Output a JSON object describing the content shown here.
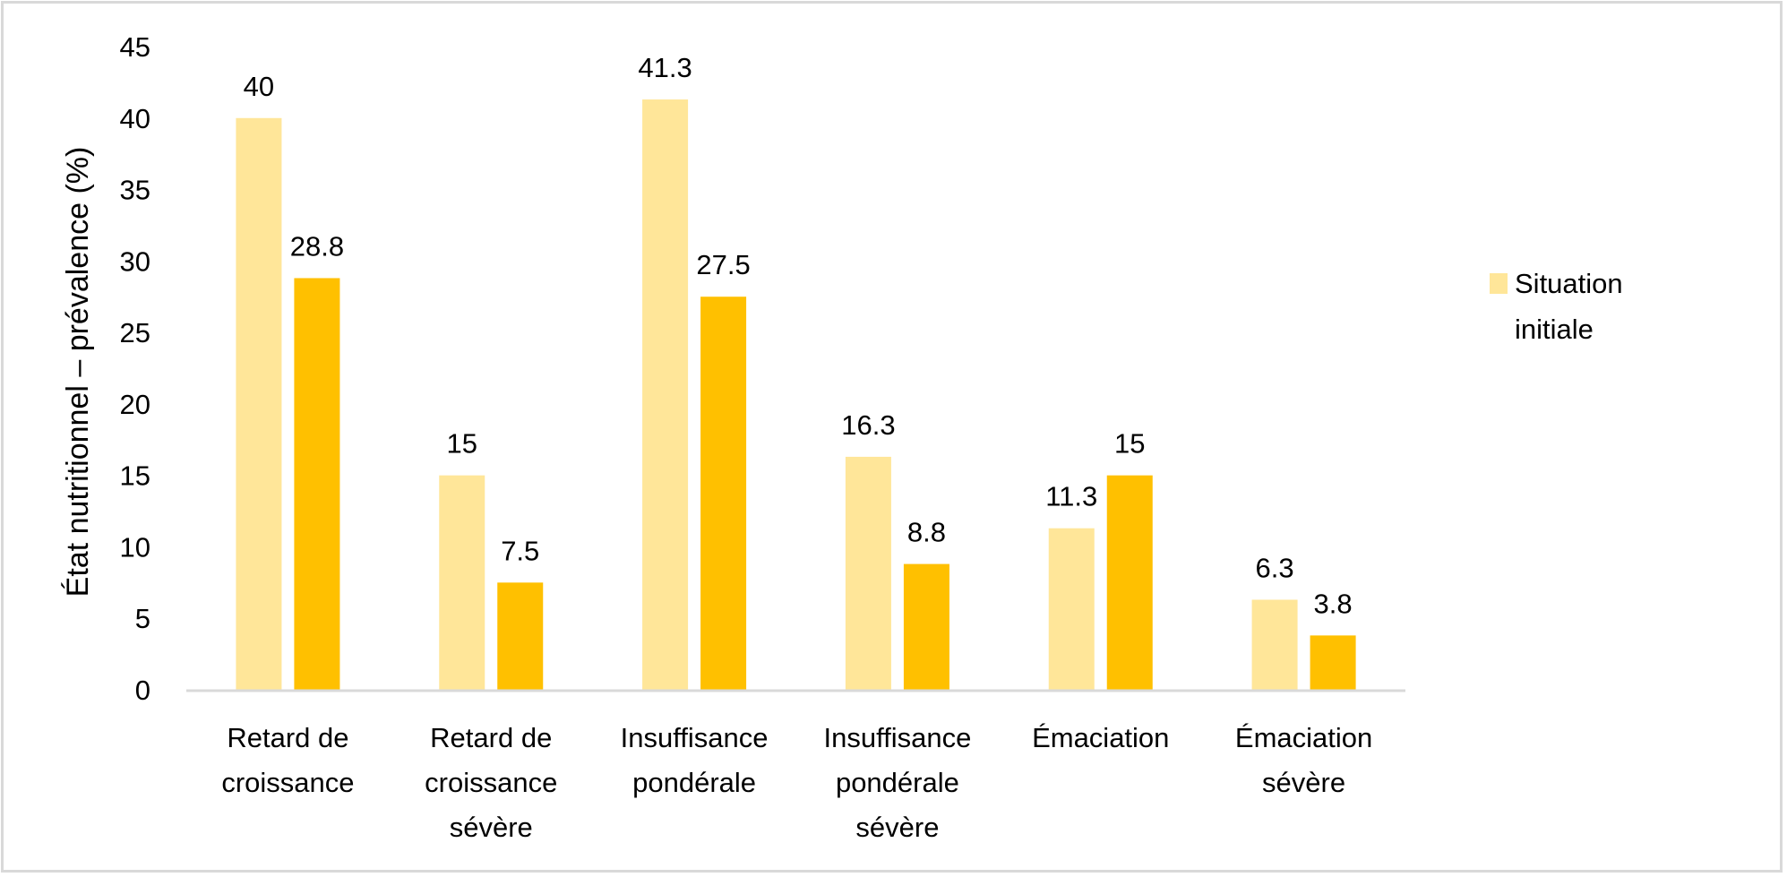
{
  "chart_data": {
    "type": "bar",
    "title": "",
    "xlabel": "",
    "ylabel": "État nutritionnel – prévalence (%)",
    "ylim": [
      0,
      45
    ],
    "yticks": [
      0,
      5,
      10,
      15,
      20,
      25,
      30,
      35,
      40,
      45
    ],
    "grid": false,
    "legend_position": "right",
    "categories": [
      [
        "Retard de",
        "croissance"
      ],
      [
        "Retard de",
        "croissance",
        "sévère"
      ],
      [
        "Insuffisance",
        "pondérale"
      ],
      [
        "Insuffisance",
        "pondérale",
        "sévère"
      ],
      [
        "Émaciation"
      ],
      [
        "Émaciation",
        "sévère"
      ]
    ],
    "series": [
      {
        "name": "Situation initiale",
        "color": "#FFE699",
        "in_legend": true,
        "values": [
          40,
          15,
          41.3,
          16.3,
          11.3,
          6.3
        ],
        "labels": [
          "40",
          "15",
          "41.3",
          "16.3",
          "11.3",
          "6.3"
        ]
      },
      {
        "name": "",
        "color": "#FFC000",
        "in_legend": false,
        "values": [
          28.8,
          7.5,
          27.5,
          8.8,
          15,
          3.8
        ],
        "labels": [
          "28.8",
          "7.5",
          "27.5",
          "8.8",
          "15",
          "3.8"
        ]
      }
    ],
    "legend": [
      "Situation initiale"
    ],
    "legend_lines": [
      "Situation",
      "initiale"
    ],
    "axis_color": "#D9D9D9"
  }
}
